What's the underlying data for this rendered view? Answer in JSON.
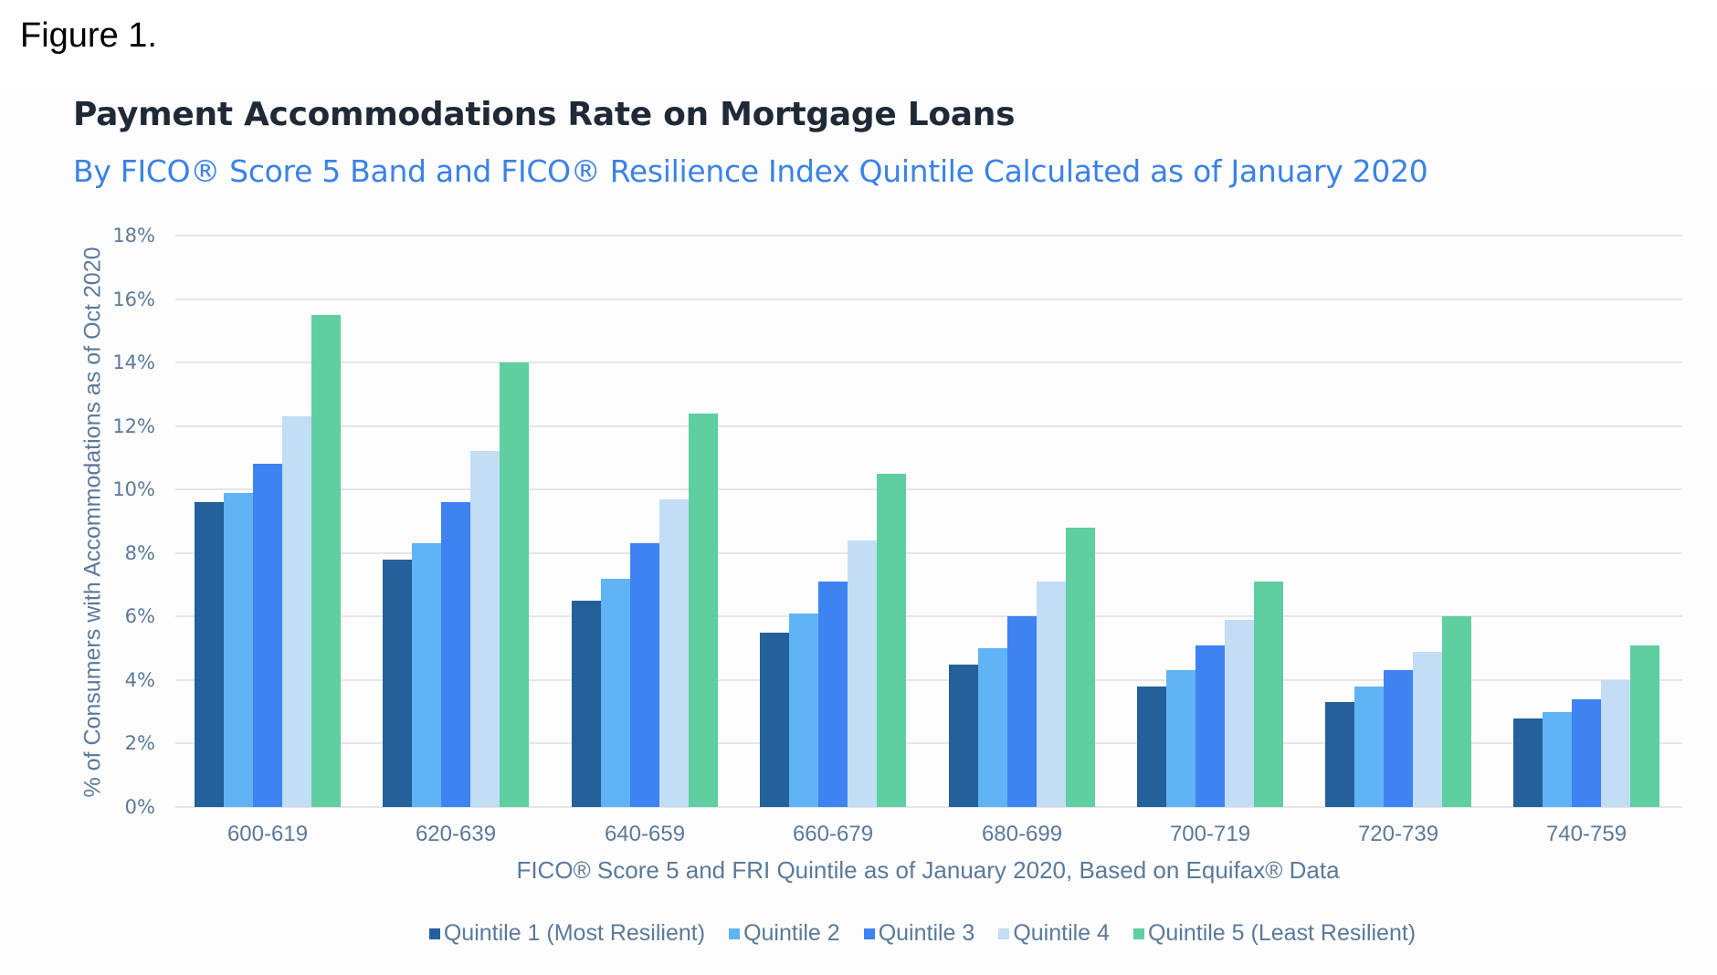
{
  "figure_label": "Figure 1.",
  "colors": {
    "q1": "#24609a",
    "q2": "#60b4f5",
    "q3": "#3f83f2",
    "q4": "#c3ddf5",
    "q5": "#5fcfa1",
    "title": "#1f2a36",
    "subtitle": "#3b82e6",
    "axis_text": "#5b7a99",
    "grid": "#e3e6ea"
  },
  "chart_data": {
    "type": "bar",
    "title": "Payment Accommodations Rate on Mortgage Loans",
    "subtitle": "By FICO® Score 5 Band and FICO® Resilience Index Quintile Calculated as of January 2020",
    "xlabel": "FICO® Score 5 and FRI Quintile as of January 2020, Based on Equifax® Data",
    "ylabel": "% of Consumers with Accommodations as of Oct 2020",
    "ylim": [
      0,
      18
    ],
    "yticks": [
      "0%",
      "2%",
      "4%",
      "6%",
      "8%",
      "10%",
      "12%",
      "14%",
      "16%",
      "18%"
    ],
    "grid": true,
    "legend_position": "bottom",
    "categories": [
      "600-619",
      "620-639",
      "640-659",
      "660-679",
      "680-699",
      "700-719",
      "720-739",
      "740-759"
    ],
    "series": [
      {
        "name": "Quintile 1 (Most Resilient)",
        "color": "#24609a",
        "values": [
          9.6,
          7.8,
          6.5,
          5.5,
          4.5,
          3.8,
          3.3,
          2.8
        ]
      },
      {
        "name": "Quintile 2",
        "color": "#60b4f5",
        "values": [
          9.9,
          8.3,
          7.2,
          6.1,
          5.0,
          4.3,
          3.8,
          3.0
        ]
      },
      {
        "name": "Quintile 3",
        "color": "#3f83f2",
        "values": [
          10.8,
          9.6,
          8.3,
          7.1,
          6.0,
          5.1,
          4.3,
          3.4
        ]
      },
      {
        "name": "Quintile 4",
        "color": "#c3ddf5",
        "values": [
          12.3,
          11.2,
          9.7,
          8.4,
          7.1,
          5.9,
          4.9,
          4.0
        ]
      },
      {
        "name": "Quintile 5 (Least Resilient)",
        "color": "#5fcfa1",
        "values": [
          15.5,
          14.0,
          12.4,
          10.5,
          8.8,
          7.1,
          6.0,
          5.1
        ]
      }
    ]
  }
}
